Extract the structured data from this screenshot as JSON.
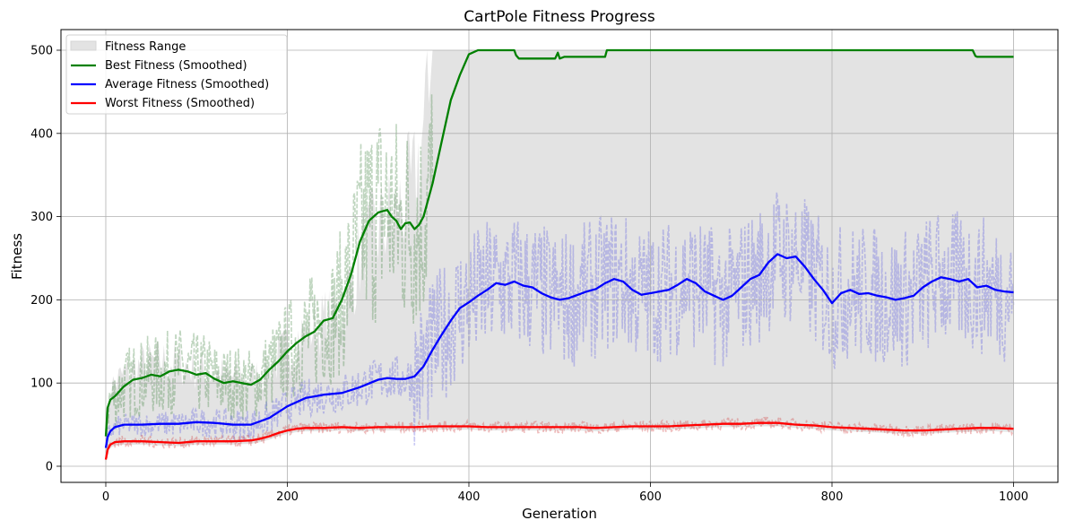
{
  "chart_data": {
    "type": "line",
    "title": "CartPole Fitness Progress",
    "xlabel": "Generation",
    "ylabel": "Fitness",
    "xlim": [
      -50,
      1050
    ],
    "ylim": [
      -18,
      522
    ],
    "xticks": [
      0,
      200,
      400,
      600,
      800,
      1000
    ],
    "yticks": [
      0,
      100,
      200,
      300,
      400,
      500
    ],
    "grid": true,
    "legend_position": "upper left",
    "legend": [
      {
        "label": "Fitness Range",
        "kind": "patch",
        "color": "#e3e3e3"
      },
      {
        "label": "Best Fitness (Smoothed)",
        "kind": "line",
        "color": "#008000"
      },
      {
        "label": "Average Fitness (Smoothed)",
        "kind": "line",
        "color": "#0000ff"
      },
      {
        "label": "Worst Fitness (Smoothed)",
        "kind": "line",
        "color": "#ff0000"
      }
    ],
    "series": [
      {
        "name": "Best Fitness (Smoothed)",
        "color": "#008000",
        "x": [
          0,
          2,
          5,
          10,
          20,
          30,
          40,
          50,
          60,
          70,
          80,
          90,
          100,
          110,
          120,
          130,
          140,
          150,
          160,
          170,
          180,
          190,
          200,
          210,
          220,
          230,
          240,
          250,
          260,
          270,
          280,
          290,
          300,
          310,
          315,
          320,
          325,
          330,
          335,
          340,
          345,
          350,
          360,
          370,
          380,
          390,
          400,
          410,
          420,
          430,
          450,
          452,
          455,
          460,
          470,
          480,
          495,
          498,
          500,
          505,
          520,
          540,
          550,
          552,
          560,
          600,
          700,
          800,
          900,
          955,
          958,
          960,
          1000
        ],
        "y": [
          36,
          70,
          80,
          84,
          96,
          104,
          106,
          110,
          108,
          114,
          116,
          114,
          110,
          112,
          105,
          100,
          102,
          100,
          98,
          104,
          116,
          126,
          138,
          148,
          156,
          162,
          175,
          178,
          200,
          230,
          270,
          295,
          305,
          308,
          300,
          295,
          285,
          292,
          293,
          285,
          290,
          300,
          340,
          390,
          440,
          470,
          495,
          500,
          500,
          500,
          500,
          494,
          490,
          490,
          490,
          490,
          490,
          497,
          490,
          492,
          492,
          492,
          492,
          500,
          500,
          500,
          500,
          500,
          500,
          500,
          493,
          492,
          492
        ]
      },
      {
        "name": "Average Fitness (Smoothed)",
        "color": "#0000ff",
        "x": [
          0,
          2,
          5,
          10,
          20,
          40,
          60,
          80,
          100,
          120,
          140,
          160,
          180,
          200,
          220,
          240,
          260,
          280,
          300,
          310,
          320,
          330,
          340,
          350,
          360,
          370,
          380,
          390,
          400,
          410,
          420,
          430,
          440,
          450,
          460,
          470,
          480,
          490,
          500,
          510,
          520,
          530,
          540,
          550,
          560,
          570,
          580,
          590,
          600,
          610,
          620,
          630,
          640,
          650,
          660,
          670,
          680,
          690,
          700,
          710,
          720,
          730,
          740,
          750,
          760,
          770,
          780,
          790,
          800,
          810,
          820,
          830,
          840,
          850,
          860,
          870,
          880,
          890,
          900,
          910,
          920,
          930,
          940,
          950,
          960,
          970,
          980,
          990,
          1000
        ],
        "y": [
          22,
          35,
          42,
          47,
          50,
          50,
          51,
          51,
          53,
          52,
          50,
          50,
          58,
          72,
          82,
          86,
          88,
          95,
          104,
          106,
          105,
          105,
          108,
          120,
          140,
          158,
          175,
          190,
          197,
          205,
          212,
          220,
          218,
          222,
          217,
          215,
          208,
          203,
          200,
          202,
          206,
          210,
          213,
          220,
          225,
          222,
          212,
          206,
          208,
          210,
          212,
          218,
          225,
          220,
          210,
          205,
          200,
          205,
          215,
          225,
          230,
          245,
          255,
          250,
          252,
          240,
          225,
          212,
          196,
          208,
          212,
          207,
          208,
          205,
          203,
          200,
          202,
          205,
          215,
          222,
          227,
          225,
          222,
          225,
          215,
          217,
          212,
          210,
          209
        ]
      },
      {
        "name": "Worst Fitness (Smoothed)",
        "color": "#ff0000",
        "x": [
          0,
          2,
          5,
          10,
          20,
          40,
          60,
          80,
          100,
          120,
          140,
          160,
          170,
          180,
          190,
          200,
          210,
          220,
          240,
          260,
          280,
          300,
          320,
          340,
          360,
          380,
          400,
          420,
          440,
          460,
          480,
          500,
          520,
          540,
          560,
          580,
          600,
          620,
          640,
          660,
          680,
          700,
          720,
          740,
          760,
          780,
          800,
          820,
          840,
          860,
          880,
          900,
          920,
          940,
          960,
          980,
          1000
        ],
        "y": [
          8,
          20,
          26,
          29,
          30,
          30,
          29,
          28,
          30,
          30,
          30,
          31,
          33,
          36,
          40,
          43,
          45,
          46,
          46,
          47,
          46,
          47,
          47,
          47,
          48,
          48,
          48,
          47,
          47,
          47,
          47,
          47,
          47,
          46,
          47,
          48,
          48,
          48,
          49,
          50,
          51,
          51,
          52,
          52,
          50,
          49,
          47,
          46,
          45,
          44,
          43,
          43,
          44,
          45,
          46,
          46,
          45
        ]
      }
    ],
    "fitness_range": {
      "description": "Shaded band between raw worst and raw best fitness per generation",
      "color": "#e3e3e3",
      "upper_x": [
        0,
        5,
        10,
        20,
        40,
        60,
        80,
        100,
        120,
        140,
        160,
        180,
        200,
        220,
        240,
        260,
        280,
        300,
        320,
        340,
        355,
        360,
        400,
        1000
      ],
      "upper_y": [
        35,
        90,
        95,
        105,
        115,
        120,
        118,
        112,
        105,
        102,
        100,
        112,
        135,
        155,
        165,
        180,
        240,
        270,
        290,
        320,
        420,
        500,
        500,
        500
      ]
    }
  }
}
